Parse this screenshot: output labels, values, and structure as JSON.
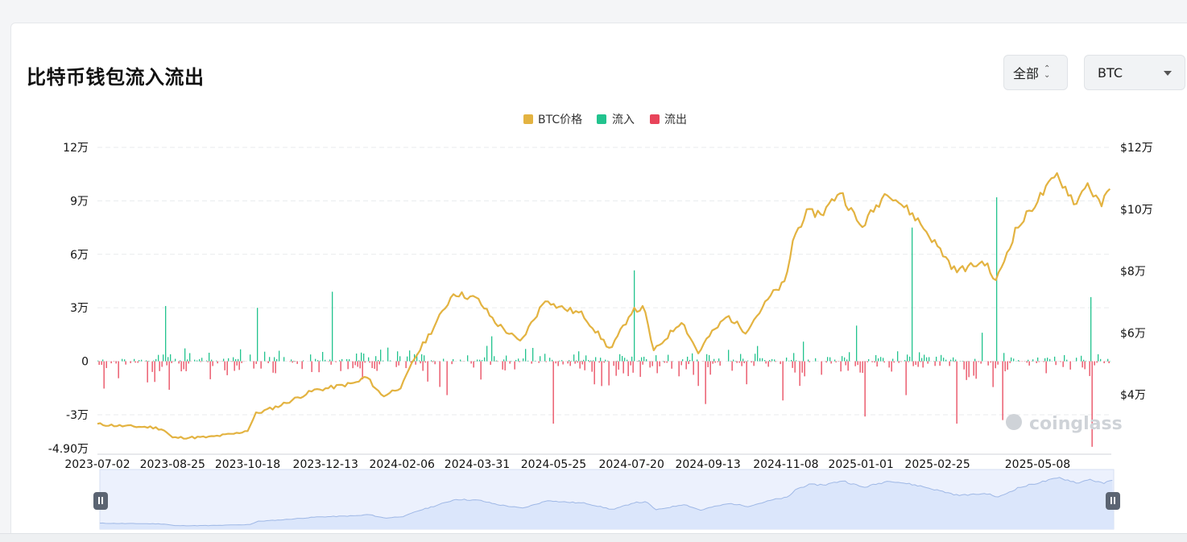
{
  "page": {
    "title": "比特币钱包流入流出",
    "range_select": "全部",
    "coin_select": "BTC"
  },
  "colors": {
    "price": "#e3b341",
    "inflow": "#22c38e",
    "outflow": "#e8445a",
    "slider_fill": "#dbe6fb",
    "slider_line": "#9fb8e6"
  },
  "icons": {
    "range_toggle": "up-down-chevron-icon",
    "coin_toggle": "caret-down-icon",
    "slider_handle": "pause-handle-icon",
    "watermark": "coinglass-logo"
  },
  "chart_data": {
    "type": "bar+line",
    "title": "比特币钱包流入流出",
    "legend": [
      "BTC价格",
      "流入",
      "流出"
    ],
    "legend_position": "top-center",
    "grid": true,
    "watermark": "coinglass",
    "x_tick_labels": [
      "2023-07-02",
      "2023-08-25",
      "2023-10-18",
      "2023-12-13",
      "2024-02-06",
      "2024-03-31",
      "2024-05-25",
      "2024-07-20",
      "2024-09-13",
      "2024-11-08",
      "2025-01-01",
      "2025-02-25",
      "2025-05-08"
    ],
    "y_left": {
      "ylim": [
        -49000,
        120000
      ],
      "tick_labels": [
        "12万",
        "9万",
        "6万",
        "3万",
        "0",
        "-3万",
        "-4.90万"
      ]
    },
    "y_right": {
      "ylim": [
        20000,
        120000
      ],
      "tick_labels": [
        "$12万",
        "$10万",
        "$8万",
        "$6万",
        "$4万"
      ]
    },
    "series": [
      {
        "name": "BTC价格",
        "axis": "right",
        "points": [
          [
            "2023-07-02",
            30500
          ],
          [
            "2023-07-20",
            29900
          ],
          [
            "2023-08-10",
            29500
          ],
          [
            "2023-08-18",
            28900
          ],
          [
            "2023-08-25",
            26100
          ],
          [
            "2023-09-20",
            26300
          ],
          [
            "2023-10-10",
            27500
          ],
          [
            "2023-10-18",
            28500
          ],
          [
            "2023-10-24",
            33900
          ],
          [
            "2023-11-10",
            36500
          ],
          [
            "2023-12-05",
            41500
          ],
          [
            "2023-12-13",
            42000
          ],
          [
            "2024-01-05",
            44000
          ],
          [
            "2024-01-11",
            46000
          ],
          [
            "2024-01-23",
            39500
          ],
          [
            "2024-02-06",
            42800
          ],
          [
            "2024-02-15",
            51800
          ],
          [
            "2024-02-29",
            62000
          ],
          [
            "2024-03-14",
            73000
          ],
          [
            "2024-03-31",
            71000
          ],
          [
            "2024-04-13",
            63500
          ],
          [
            "2024-05-01",
            57000
          ],
          [
            "2024-05-20",
            71500
          ],
          [
            "2024-05-25",
            69000
          ],
          [
            "2024-06-15",
            66000
          ],
          [
            "2024-07-05",
            54500
          ],
          [
            "2024-07-20",
            67000
          ],
          [
            "2024-07-29",
            68000
          ],
          [
            "2024-08-05",
            54000
          ],
          [
            "2024-08-25",
            64000
          ],
          [
            "2024-09-06",
            53500
          ],
          [
            "2024-09-13",
            58500
          ],
          [
            "2024-09-27",
            65500
          ],
          [
            "2024-10-10",
            60500
          ],
          [
            "2024-10-29",
            72500
          ],
          [
            "2024-11-08",
            76500
          ],
          [
            "2024-11-13",
            90000
          ],
          [
            "2024-11-22",
            98500
          ],
          [
            "2024-12-05",
            99000
          ],
          [
            "2024-12-17",
            106000
          ],
          [
            "2025-01-01",
            94000
          ],
          [
            "2025-01-20",
            106000
          ],
          [
            "2025-02-10",
            97000
          ],
          [
            "2025-02-25",
            88000
          ],
          [
            "2025-03-10",
            80000
          ],
          [
            "2025-03-31",
            83000
          ],
          [
            "2025-04-08",
            76500
          ],
          [
            "2025-04-22",
            93000
          ],
          [
            "2025-05-08",
            103000
          ],
          [
            "2025-05-22",
            111000
          ],
          [
            "2025-06-05",
            101500
          ],
          [
            "2025-06-12",
            109000
          ],
          [
            "2025-06-22",
            101000
          ],
          [
            "2025-06-30",
            107000
          ]
        ]
      },
      {
        "name": "流入",
        "axis": "left",
        "peaks": [
          [
            "2023-08-20",
            31000
          ],
          [
            "2023-10-24",
            30000
          ],
          [
            "2023-12-18",
            39000
          ],
          [
            "2024-04-10",
            14000
          ],
          [
            "2024-07-22",
            51000
          ],
          [
            "2024-11-20",
            11000
          ],
          [
            "2024-12-28",
            20000
          ],
          [
            "2025-02-06",
            75000
          ],
          [
            "2025-03-29",
            16000
          ],
          [
            "2025-04-09",
            92000
          ],
          [
            "2025-06-15",
            36000
          ]
        ]
      },
      {
        "name": "流出",
        "axis": "left",
        "peaks": [
          [
            "2023-08-22",
            -16000
          ],
          [
            "2024-03-08",
            -19000
          ],
          [
            "2024-05-23",
            -35000
          ],
          [
            "2024-09-10",
            -24000
          ],
          [
            "2024-11-05",
            -22000
          ],
          [
            "2025-01-03",
            -31000
          ],
          [
            "2025-02-01",
            -19000
          ],
          [
            "2025-03-09",
            -35000
          ],
          [
            "2025-04-12",
            -33000
          ],
          [
            "2025-06-15",
            -48000
          ]
        ]
      }
    ]
  }
}
